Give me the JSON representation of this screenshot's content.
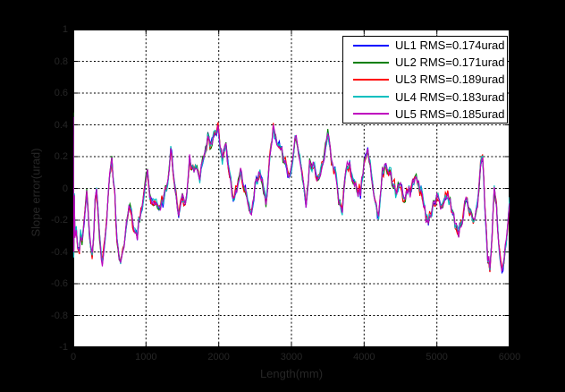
{
  "figure": {
    "background_color": "#000000",
    "plot_background_color": "#ffffff",
    "axis_text_color": "#262626",
    "grid_style": "dashed black on all major ticks"
  },
  "chart_data": {
    "type": "line",
    "title": "",
    "xlabel": "Length(mm)",
    "ylabel": "Slope error(urad)",
    "xlim": [
      0,
      6000
    ],
    "ylim": [
      -1,
      1
    ],
    "xticks": [
      "0",
      "1000",
      "2000",
      "3000",
      "4000",
      "5000",
      "6000"
    ],
    "yticks": [
      "1",
      "0.8",
      "0.6",
      "0.4",
      "0.2",
      "0",
      "-0.2",
      "-0.4",
      "-0.6",
      "-0.8",
      "-1"
    ],
    "grid": "on",
    "legend_position": "top-right-inside",
    "series": [
      {
        "name": "UL1 RMS=0.174urad",
        "color": "#0000FF",
        "rms_urad": 0.174
      },
      {
        "name": "UL2 RMS=0.171urad",
        "color": "#007F00",
        "rms_urad": 0.171
      },
      {
        "name": "UL3 RMS=0.189urad",
        "color": "#FF0000",
        "rms_urad": 0.189
      },
      {
        "name": "UL4 RMS=0.183urad",
        "color": "#00BFBF",
        "rms_urad": 0.183
      },
      {
        "name": "UL5 RMS=0.185urad",
        "color": "#BF00BF",
        "rms_urad": 0.185
      }
    ],
    "series_note": "five nearly identical overlapping noisy traces; base_points approximate the shared curve (x in mm, y in urad), per-series deviation ~0.02 urad",
    "jitter_amplitude": 0.018,
    "common_noise_amplitude": 0.035,
    "base_points": [
      [
        0,
        0.45
      ],
      [
        6,
        -0.42
      ],
      [
        14,
        -0.05
      ],
      [
        22,
        -0.3
      ],
      [
        40,
        -0.25
      ],
      [
        60,
        -0.37
      ],
      [
        85,
        -0.4
      ],
      [
        100,
        -0.28
      ],
      [
        120,
        -0.33
      ],
      [
        150,
        -0.2
      ],
      [
        170,
        -0.1
      ],
      [
        185,
        -0.03
      ],
      [
        200,
        -0.12
      ],
      [
        220,
        -0.28
      ],
      [
        240,
        -0.37
      ],
      [
        260,
        -0.43
      ],
      [
        280,
        -0.3
      ],
      [
        300,
        -0.08
      ],
      [
        320,
        -0.01
      ],
      [
        340,
        -0.15
      ],
      [
        360,
        -0.3
      ],
      [
        385,
        -0.42
      ],
      [
        400,
        -0.47
      ],
      [
        420,
        -0.38
      ],
      [
        440,
        -0.3
      ],
      [
        460,
        -0.2
      ],
      [
        480,
        -0.05
      ],
      [
        500,
        0.08
      ],
      [
        530,
        0.18
      ],
      [
        550,
        0.05
      ],
      [
        570,
        -0.01
      ],
      [
        600,
        -0.33
      ],
      [
        630,
        -0.44
      ],
      [
        650,
        -0.47
      ],
      [
        680,
        -0.38
      ],
      [
        700,
        -0.35
      ],
      [
        730,
        -0.22
      ],
      [
        750,
        -0.17
      ],
      [
        780,
        -0.12
      ],
      [
        800,
        -0.15
      ],
      [
        830,
        -0.25
      ],
      [
        850,
        -0.28
      ],
      [
        880,
        -0.31
      ],
      [
        900,
        -0.19
      ],
      [
        930,
        -0.14
      ],
      [
        950,
        -0.11
      ],
      [
        975,
        -0.02
      ],
      [
        1000,
        0.06
      ],
      [
        1020,
        0.1
      ],
      [
        1050,
        -0.05
      ],
      [
        1080,
        -0.09
      ],
      [
        1120,
        -0.09
      ],
      [
        1160,
        -0.11
      ],
      [
        1200,
        -0.11
      ],
      [
        1250,
        -0.05
      ],
      [
        1300,
        0.04
      ],
      [
        1340,
        0.25
      ],
      [
        1370,
        0.12
      ],
      [
        1400,
        0.0
      ],
      [
        1430,
        -0.12
      ],
      [
        1450,
        -0.17
      ],
      [
        1480,
        -0.09
      ],
      [
        1520,
        -0.09
      ],
      [
        1560,
        -0.05
      ],
      [
        1600,
        0.2
      ],
      [
        1630,
        0.13
      ],
      [
        1660,
        0.11
      ],
      [
        1700,
        0.13
      ],
      [
        1740,
        0.06
      ],
      [
        1780,
        0.18
      ],
      [
        1820,
        0.25
      ],
      [
        1850,
        0.34
      ],
      [
        1880,
        0.27
      ],
      [
        1910,
        0.3
      ],
      [
        1950,
        0.36
      ],
      [
        1990,
        0.4
      ],
      [
        2020,
        0.25
      ],
      [
        2050,
        0.17
      ],
      [
        2100,
        0.28
      ],
      [
        2150,
        0.08
      ],
      [
        2200,
        -0.07
      ],
      [
        2250,
        -0.01
      ],
      [
        2300,
        0.11
      ],
      [
        2350,
        0.0
      ],
      [
        2400,
        -0.08
      ],
      [
        2450,
        -0.15
      ],
      [
        2500,
        0.04
      ],
      [
        2550,
        0.08
      ],
      [
        2600,
        0.04
      ],
      [
        2650,
        -0.09
      ],
      [
        2700,
        0.19
      ],
      [
        2750,
        0.4
      ],
      [
        2800,
        0.28
      ],
      [
        2850,
        0.25
      ],
      [
        2900,
        0.17
      ],
      [
        2950,
        0.09
      ],
      [
        3000,
        0.13
      ],
      [
        3050,
        0.32
      ],
      [
        3100,
        0.21
      ],
      [
        3150,
        0.08
      ],
      [
        3200,
        -0.11
      ],
      [
        3250,
        0.16
      ],
      [
        3300,
        0.15
      ],
      [
        3350,
        0.06
      ],
      [
        3400,
        0.11
      ],
      [
        3450,
        0.2
      ],
      [
        3500,
        0.35
      ],
      [
        3550,
        0.17
      ],
      [
        3600,
        0.12
      ],
      [
        3650,
        -0.09
      ],
      [
        3700,
        -0.15
      ],
      [
        3750,
        0.12
      ],
      [
        3800,
        0.16
      ],
      [
        3850,
        0.05
      ],
      [
        3900,
        0.0
      ],
      [
        3950,
        -0.04
      ],
      [
        4000,
        0.16
      ],
      [
        4050,
        0.23
      ],
      [
        4100,
        0.08
      ],
      [
        4150,
        -0.07
      ],
      [
        4200,
        -0.17
      ],
      [
        4250,
        0.11
      ],
      [
        4300,
        0.14
      ],
      [
        4350,
        0.11
      ],
      [
        4400,
        0.02
      ],
      [
        4450,
        -0.03
      ],
      [
        4500,
        0.02
      ],
      [
        4550,
        -0.07
      ],
      [
        4600,
        -0.03
      ],
      [
        4650,
        -0.01
      ],
      [
        4700,
        0.06
      ],
      [
        4750,
        0.02
      ],
      [
        4800,
        -0.05
      ],
      [
        4850,
        -0.19
      ],
      [
        4900,
        -0.17
      ],
      [
        4950,
        -0.09
      ],
      [
        5000,
        -0.04
      ],
      [
        5050,
        -0.11
      ],
      [
        5100,
        -0.08
      ],
      [
        5150,
        -0.04
      ],
      [
        5200,
        -0.13
      ],
      [
        5250,
        -0.24
      ],
      [
        5300,
        -0.29
      ],
      [
        5350,
        -0.21
      ],
      [
        5400,
        -0.07
      ],
      [
        5450,
        -0.15
      ],
      [
        5500,
        -0.21
      ],
      [
        5560,
        -0.1
      ],
      [
        5600,
        0.15
      ],
      [
        5630,
        0.19
      ],
      [
        5660,
        -0.1
      ],
      [
        5700,
        -0.45
      ],
      [
        5730,
        -0.52
      ],
      [
        5760,
        -0.3
      ],
      [
        5790,
        0.0
      ],
      [
        5820,
        -0.1
      ],
      [
        5850,
        -0.35
      ],
      [
        5880,
        -0.46
      ],
      [
        5910,
        -0.5
      ],
      [
        5940,
        -0.38
      ],
      [
        5970,
        -0.25
      ],
      [
        6000,
        -0.08
      ]
    ]
  }
}
